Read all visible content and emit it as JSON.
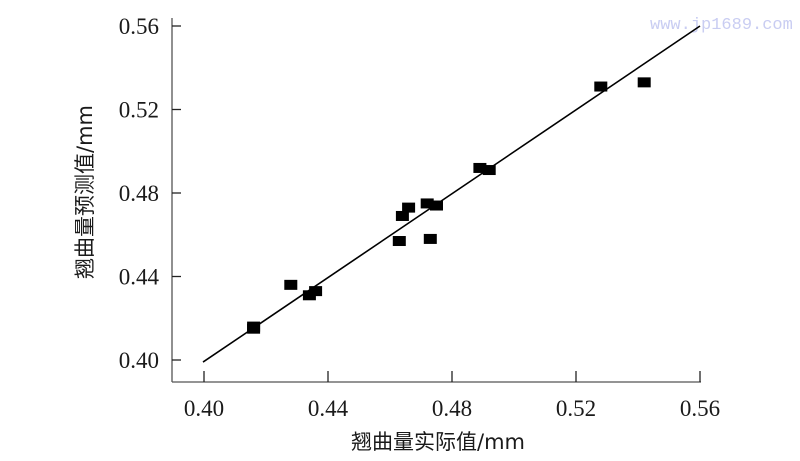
{
  "watermark": "www.jp1689.com",
  "colors": {
    "axis": "#555555",
    "marker": "#000000",
    "fit_line": "#000000",
    "text": "#1a1a1a",
    "watermark": "#c9cdf2"
  },
  "chart_data": {
    "type": "scatter",
    "title": "",
    "xlabel": "翘曲量实际值/mm",
    "ylabel": "翘曲量预测值/mm",
    "xlim": [
      0.4,
      0.56
    ],
    "ylim": [
      0.4,
      0.56
    ],
    "x_ticks": [
      "0.40",
      "0.44",
      "0.48",
      "0.52",
      "0.56"
    ],
    "y_ticks": [
      "0.40",
      "0.44",
      "0.48",
      "0.52",
      "0.56"
    ],
    "grid": false,
    "legend": null,
    "marker": "square",
    "series": [
      {
        "name": "samples",
        "points": [
          {
            "x": 0.416,
            "y": 0.415
          },
          {
            "x": 0.416,
            "y": 0.416
          },
          {
            "x": 0.428,
            "y": 0.436
          },
          {
            "x": 0.434,
            "y": 0.431
          },
          {
            "x": 0.436,
            "y": 0.433
          },
          {
            "x": 0.463,
            "y": 0.457
          },
          {
            "x": 0.464,
            "y": 0.469
          },
          {
            "x": 0.466,
            "y": 0.473
          },
          {
            "x": 0.473,
            "y": 0.458
          },
          {
            "x": 0.472,
            "y": 0.475
          },
          {
            "x": 0.475,
            "y": 0.474
          },
          {
            "x": 0.489,
            "y": 0.492
          },
          {
            "x": 0.492,
            "y": 0.491
          },
          {
            "x": 0.528,
            "y": 0.531
          },
          {
            "x": 0.542,
            "y": 0.533
          }
        ]
      }
    ],
    "reference_line": {
      "type": "y=x",
      "from": [
        0.4,
        0.399
      ],
      "to": [
        0.56,
        0.56
      ]
    }
  }
}
